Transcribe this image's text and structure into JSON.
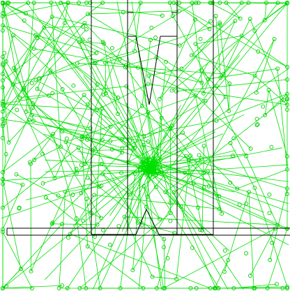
{
  "scene": {
    "background_color": "#ffffff",
    "wall_color": "#000000",
    "path_color": "#00e000",
    "node_color": "#00cc00",
    "random_seed": 7
  }
}
